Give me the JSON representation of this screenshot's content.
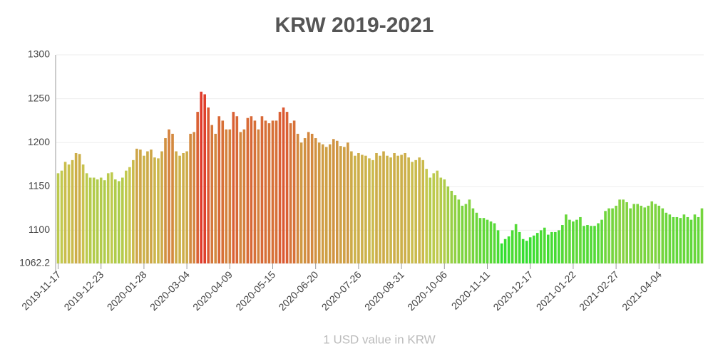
{
  "chart_data": {
    "type": "bar",
    "title": "KRW 2019-2021",
    "x_label": "1 USD value in KRW",
    "categories": [
      "2019-11-17",
      null,
      null,
      null,
      null,
      null,
      null,
      null,
      null,
      null,
      null,
      null,
      "2019-12-23",
      null,
      null,
      null,
      null,
      null,
      null,
      null,
      null,
      null,
      null,
      null,
      "2020-01-28",
      null,
      null,
      null,
      null,
      null,
      null,
      null,
      null,
      null,
      null,
      null,
      "2020-03-04",
      null,
      null,
      null,
      null,
      null,
      null,
      null,
      null,
      null,
      null,
      null,
      "2020-04-09",
      null,
      null,
      null,
      null,
      null,
      null,
      null,
      null,
      null,
      null,
      null,
      "2020-05-15",
      null,
      null,
      null,
      null,
      null,
      null,
      null,
      null,
      null,
      null,
      null,
      "2020-06-20",
      null,
      null,
      null,
      null,
      null,
      null,
      null,
      null,
      null,
      null,
      null,
      "2020-07-26",
      null,
      null,
      null,
      null,
      null,
      null,
      null,
      null,
      null,
      null,
      null,
      "2020-08-31",
      null,
      null,
      null,
      null,
      null,
      null,
      null,
      null,
      null,
      null,
      null,
      "2020-10-06",
      null,
      null,
      null,
      null,
      null,
      null,
      null,
      null,
      null,
      null,
      null,
      "2020-11-11",
      null,
      null,
      null,
      null,
      null,
      null,
      null,
      null,
      null,
      null,
      null,
      "2020-12-17",
      null,
      null,
      null,
      null,
      null,
      null,
      null,
      null,
      null,
      null,
      null,
      "2021-01-22",
      null,
      null,
      null,
      null,
      null,
      null,
      null,
      null,
      null,
      null,
      null,
      "2021-02-27",
      null,
      null,
      null,
      null,
      null,
      null,
      null,
      null,
      null,
      null,
      null,
      "2021-04-04",
      null,
      null,
      null,
      null,
      null,
      null,
      null,
      null,
      null,
      null,
      null,
      null
    ],
    "values": [
      1165,
      1168,
      1178,
      1175,
      1180,
      1188,
      1187,
      1175,
      1165,
      1160,
      1160,
      1158,
      1160,
      1157,
      1165,
      1166,
      1158,
      1156,
      1160,
      1168,
      1172,
      1180,
      1193,
      1192,
      1185,
      1190,
      1192,
      1183,
      1182,
      1190,
      1205,
      1215,
      1210,
      1190,
      1185,
      1188,
      1190,
      1210,
      1212,
      1235,
      1258,
      1255,
      1240,
      1220,
      1210,
      1230,
      1225,
      1215,
      1215,
      1235,
      1230,
      1212,
      1215,
      1228,
      1230,
      1225,
      1215,
      1230,
      1225,
      1222,
      1225,
      1225,
      1235,
      1240,
      1235,
      1222,
      1225,
      1210,
      1200,
      1205,
      1212,
      1210,
      1205,
      1200,
      1198,
      1195,
      1198,
      1204,
      1202,
      1196,
      1195,
      1200,
      1190,
      1185,
      1188,
      1186,
      1185,
      1182,
      1180,
      1188,
      1185,
      1190,
      1185,
      1183,
      1188,
      1185,
      1186,
      1188,
      1183,
      1178,
      1180,
      1183,
      1180,
      1170,
      1160,
      1165,
      1168,
      1160,
      1158,
      1150,
      1145,
      1140,
      1135,
      1128,
      1130,
      1135,
      1125,
      1120,
      1114,
      1114,
      1112,
      1110,
      1108,
      1100,
      1085,
      1090,
      1093,
      1100,
      1107,
      1098,
      1090,
      1088,
      1092,
      1094,
      1097,
      1100,
      1103,
      1095,
      1098,
      1098,
      1100,
      1106,
      1118,
      1112,
      1110,
      1112,
      1115,
      1105,
      1106,
      1105,
      1105,
      1108,
      1112,
      1122,
      1125,
      1125,
      1128,
      1135,
      1135,
      1132,
      1125,
      1130,
      1130,
      1128,
      1126,
      1128,
      1133,
      1130,
      1128,
      1125,
      1120,
      1118,
      1115,
      1115,
      1114,
      1118,
      1115,
      1112,
      1118,
      1115,
      1125
    ],
    "color_scale": [
      "#2ee02e",
      "#c8c850",
      "#e03a2a"
    ],
    "ylim": [
      1062.2,
      1300
    ],
    "yticks": [
      1062.2,
      1100,
      1150,
      1200,
      1250,
      1300
    ],
    "grid": true
  }
}
